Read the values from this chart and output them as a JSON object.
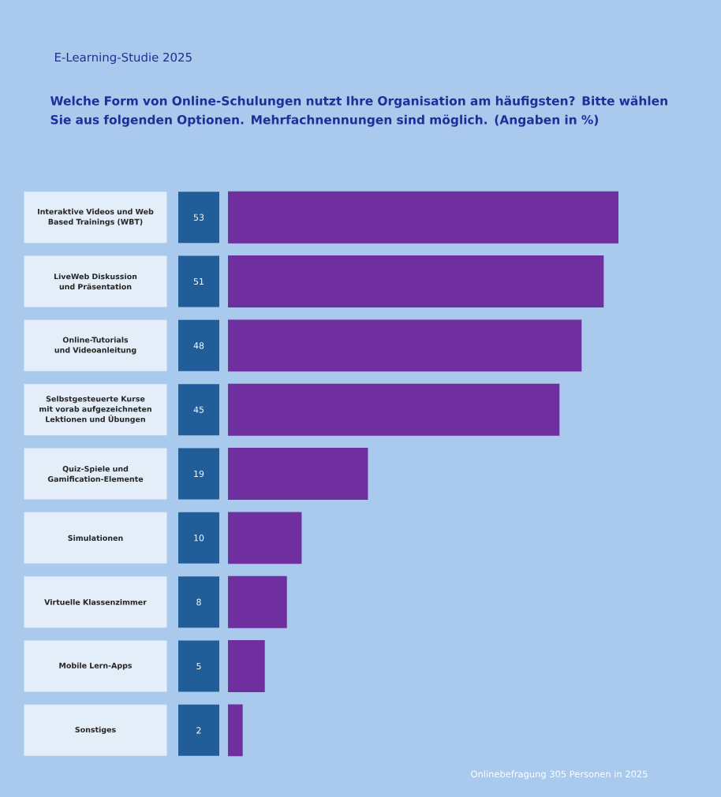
{
  "chart_data": {
    "type": "bar",
    "orientation": "horizontal",
    "subtitle": "E-Learning-Studie 2025",
    "title": "Welche Form von Online-Schulungen nutzt Ihre Organisation am häufigsten? Bitte wählen Sie aus folgenden Optionen. Mehrfachnennungen sind möglich. (Angaben in %)",
    "categories": [
      "Interaktive Videos und Web Based Trainings (WBT)",
      "LiveWeb Diskussion und Präsentation",
      "Online-Tutorials und Videoanleitung",
      "Selbstgesteuerte Kurse mit vorab aufgezeichneten Lektionen und Übungen",
      "Quiz-Spiele und Gamification-Elemente",
      "Simulationen",
      "Virtuelle Klassenzimmer",
      "Mobile Lern-Apps",
      "Sonstiges"
    ],
    "values": [
      53,
      51,
      48,
      45,
      19,
      10,
      8,
      5,
      2
    ],
    "color": "#6f2f9f",
    "xlim": [
      0,
      53
    ],
    "data_labels": true,
    "annotations": [
      "Onlinebefragung 305 Personen in 2025"
    ]
  }
}
